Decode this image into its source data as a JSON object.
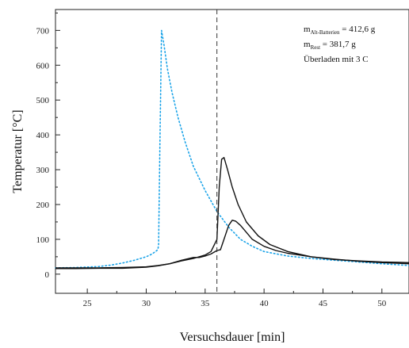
{
  "chart_data": {
    "type": "line",
    "xlabel": "Versuchsdauer [min]",
    "ylabel": "Temperatur [°C]",
    "xlim": [
      22.3,
      52.3
    ],
    "ylim": [
      -55,
      760
    ],
    "x_ticks": [
      25,
      30,
      35,
      40,
      45,
      50
    ],
    "x_tick_labels": [
      "25",
      "30",
      "35",
      "40",
      "45",
      "50"
    ],
    "y_ticks": [
      0,
      100,
      200,
      300,
      400,
      500,
      600,
      700
    ],
    "y_tick_labels": [
      "0",
      "100",
      "200",
      "300",
      "400",
      "500",
      "600",
      "700"
    ],
    "vline_x": 36.0,
    "annotations": [
      {
        "main": "m",
        "sub": "Alt-Batterien",
        "value": " = 412,6 g"
      },
      {
        "main": "m",
        "sub": "Rest",
        "value": " = 381,7 g"
      },
      {
        "main": "Überladen mit 3 C",
        "sub": "",
        "value": ""
      }
    ],
    "series": [
      {
        "color": "#1aa3e8",
        "style": "dotted",
        "x": [
          22.3,
          24,
          26,
          27,
          28,
          29,
          30,
          30.5,
          30.9,
          31.0,
          31.05,
          31.15,
          31.3,
          31.5,
          31.8,
          32.2,
          32.7,
          33.3,
          34,
          35,
          36,
          37,
          38,
          39,
          40,
          42,
          44,
          46,
          48,
          50,
          52.3
        ],
        "y": [
          18,
          19,
          22,
          26,
          32,
          40,
          50,
          58,
          68,
          72,
          85,
          350,
          700,
          660,
          590,
          520,
          450,
          380,
          310,
          240,
          180,
          135,
          100,
          80,
          65,
          52,
          45,
          40,
          35,
          30,
          25
        ]
      },
      {
        "color": "#111111",
        "style": "solid",
        "x": [
          22.3,
          24,
          26,
          28,
          30,
          31,
          32,
          33,
          34,
          35,
          35.5,
          36,
          36.2,
          36.4,
          36.6,
          36.9,
          37.3,
          37.8,
          38.5,
          39.5,
          40.5,
          42,
          44,
          46,
          48,
          50,
          52.3
        ],
        "y": [
          18,
          18,
          18,
          19,
          21,
          25,
          30,
          38,
          45,
          55,
          65,
          100,
          250,
          330,
          335,
          300,
          250,
          200,
          150,
          110,
          85,
          65,
          50,
          42,
          38,
          35,
          33
        ]
      },
      {
        "color": "#111111",
        "style": "solid",
        "x": [
          22.3,
          24,
          26,
          28,
          30,
          31,
          32,
          33,
          34,
          34.5,
          35,
          35.5,
          36,
          36.3,
          36.6,
          37,
          37.3,
          37.6,
          38,
          38.5,
          39,
          40,
          41,
          42,
          44,
          46,
          48,
          50,
          52.3
        ],
        "y": [
          16,
          16,
          17,
          17,
          20,
          24,
          30,
          40,
          48,
          48,
          52,
          58,
          68,
          70,
          100,
          140,
          155,
          152,
          140,
          120,
          100,
          80,
          68,
          60,
          50,
          43,
          37,
          33,
          30
        ]
      }
    ]
  }
}
